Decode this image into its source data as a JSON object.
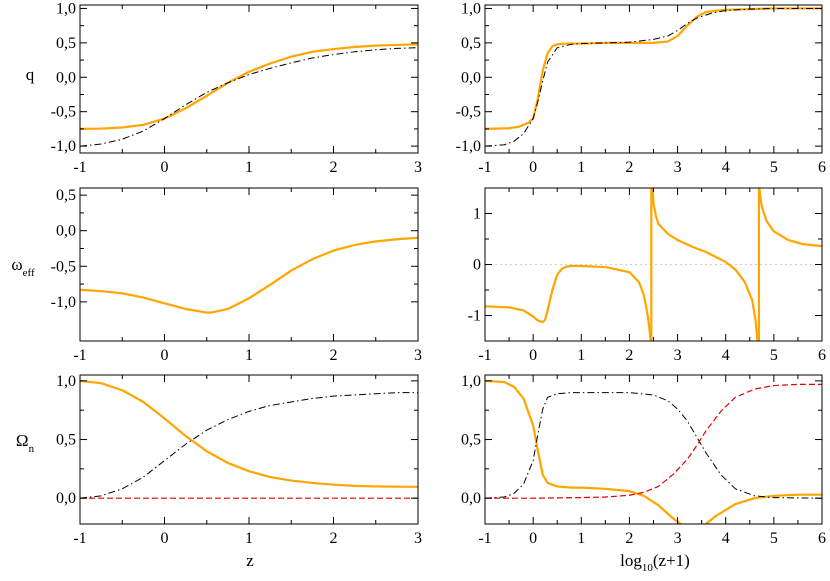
{
  "colors": {
    "orange": "#ffa500",
    "black": "#000000",
    "red": "#e00000",
    "zero_line": "#cccccc"
  },
  "labels": {
    "q": "q",
    "omega": "ω",
    "omega_sub": "eff",
    "Omega": "Ω",
    "Omega_sub": "n",
    "z": "z",
    "log_main": "log",
    "log_sub": "10",
    "log_arg": "(z+1)"
  },
  "chart_data": [
    {
      "id": "q_z",
      "type": "line",
      "row": 0,
      "col": 0,
      "xlim": [
        -1,
        3
      ],
      "ylim": [
        -1.1,
        1.05
      ],
      "xticks": [
        -1,
        0,
        1,
        2,
        3
      ],
      "xticklabels": [
        "-1",
        "0",
        "1",
        "2",
        "3"
      ],
      "yticks": [
        -1,
        -0.5,
        0,
        0.5,
        1
      ],
      "yticklabels": [
        "-1,0",
        "-0,5",
        "0,0",
        "0,5",
        "1,0"
      ],
      "ylabel": "q",
      "series": [
        {
          "color": "orange",
          "style": "solid",
          "width": 2.2,
          "x": [
            -1,
            -0.75,
            -0.5,
            -0.25,
            0,
            0.25,
            0.5,
            0.75,
            1,
            1.25,
            1.5,
            1.75,
            2,
            2.25,
            2.5,
            2.75,
            3
          ],
          "y": [
            -0.75,
            -0.745,
            -0.73,
            -0.69,
            -0.6,
            -0.45,
            -0.27,
            -0.08,
            0.08,
            0.2,
            0.3,
            0.37,
            0.41,
            0.44,
            0.46,
            0.47,
            0.48
          ]
        },
        {
          "color": "black",
          "style": "dashdot",
          "width": 1,
          "x": [
            -1,
            -0.75,
            -0.5,
            -0.25,
            0,
            0.25,
            0.5,
            0.75,
            1,
            1.25,
            1.5,
            1.75,
            2,
            2.25,
            2.5,
            2.75,
            3
          ],
          "y": [
            -1.0,
            -0.97,
            -0.9,
            -0.78,
            -0.6,
            -0.4,
            -0.22,
            -0.08,
            0.04,
            0.13,
            0.21,
            0.28,
            0.33,
            0.37,
            0.4,
            0.42,
            0.43
          ]
        }
      ]
    },
    {
      "id": "q_log",
      "type": "line",
      "row": 0,
      "col": 1,
      "xlim": [
        -1,
        6
      ],
      "ylim": [
        -1.1,
        1.05
      ],
      "xticks": [
        -1,
        0,
        1,
        2,
        3,
        4,
        5,
        6
      ],
      "xticklabels": [
        "-1",
        "0",
        "1",
        "2",
        "3",
        "4",
        "5",
        "6"
      ],
      "yticks": [
        -1,
        -0.5,
        0,
        0.5,
        1
      ],
      "yticklabels": [
        "-1,0",
        "-0,5",
        "0,0",
        "0,5",
        "1,0"
      ],
      "ylabel": "",
      "series": [
        {
          "color": "orange",
          "style": "solid",
          "width": 2.2,
          "x": [
            -1,
            -0.5,
            -0.3,
            -0.1,
            0,
            0.1,
            0.2,
            0.3,
            0.4,
            0.5,
            0.7,
            1,
            1.5,
            2,
            2.5,
            2.8,
            3,
            3.2,
            3.4,
            3.6,
            4,
            4.5,
            5,
            5.5,
            6
          ],
          "y": [
            -0.75,
            -0.74,
            -0.72,
            -0.66,
            -0.6,
            -0.3,
            0.1,
            0.35,
            0.45,
            0.48,
            0.49,
            0.49,
            0.5,
            0.5,
            0.5,
            0.52,
            0.6,
            0.75,
            0.88,
            0.95,
            0.98,
            0.99,
            1.0,
            1.0,
            1.0
          ]
        },
        {
          "color": "black",
          "style": "dashdot",
          "width": 1,
          "x": [
            -1,
            -0.6,
            -0.4,
            -0.2,
            0,
            0.1,
            0.2,
            0.3,
            0.5,
            0.8,
            1,
            1.5,
            2,
            2.5,
            2.8,
            3,
            3.2,
            3.4,
            3.7,
            4,
            4.5,
            5,
            6
          ],
          "y": [
            -1.0,
            -0.98,
            -0.93,
            -0.82,
            -0.6,
            -0.35,
            -0.05,
            0.22,
            0.43,
            0.48,
            0.49,
            0.5,
            0.51,
            0.55,
            0.6,
            0.68,
            0.78,
            0.86,
            0.93,
            0.97,
            0.99,
            1.0,
            1.0
          ]
        }
      ]
    },
    {
      "id": "w_z",
      "type": "line",
      "row": 1,
      "col": 0,
      "xlim": [
        -1,
        3
      ],
      "ylim": [
        -1.55,
        0.6
      ],
      "xticks": [
        -1,
        0,
        1,
        2,
        3
      ],
      "xticklabels": [
        "-1",
        "0",
        "1",
        "2",
        "3"
      ],
      "yticks": [
        -1,
        -0.5,
        0,
        0.5
      ],
      "yticklabels": [
        "-1,0",
        "-0,5",
        "0,0",
        "0,5"
      ],
      "ylabel": "omega",
      "series": [
        {
          "color": "orange",
          "style": "solid",
          "width": 2.2,
          "x": [
            -1,
            -0.75,
            -0.5,
            -0.25,
            0,
            0.25,
            0.5,
            0.55,
            0.75,
            1,
            1.25,
            1.5,
            1.75,
            2,
            2.25,
            2.5,
            2.75,
            3
          ],
          "y": [
            -0.83,
            -0.85,
            -0.88,
            -0.94,
            -1.02,
            -1.1,
            -1.15,
            -1.15,
            -1.1,
            -0.95,
            -0.76,
            -0.56,
            -0.4,
            -0.28,
            -0.2,
            -0.15,
            -0.12,
            -0.1
          ]
        }
      ]
    },
    {
      "id": "w_log",
      "type": "line",
      "row": 1,
      "col": 1,
      "xlim": [
        -1,
        6
      ],
      "ylim": [
        -1.5,
        1.5
      ],
      "xticks": [
        -1,
        0,
        1,
        2,
        3,
        4,
        5,
        6
      ],
      "xticklabels": [
        "-1",
        "0",
        "1",
        "2",
        "3",
        "4",
        "5",
        "6"
      ],
      "yticks": [
        -1,
        0,
        1
      ],
      "yticklabels": [
        "-1",
        "0",
        "1"
      ],
      "ylabel": "",
      "zero_line": true,
      "series": [
        {
          "color": "orange",
          "style": "solid",
          "width": 2.2,
          "x": [
            -1,
            -0.5,
            -0.2,
            0,
            0.1,
            0.2,
            0.25,
            0.3,
            0.4,
            0.5,
            0.6,
            0.7,
            0.8,
            1,
            1.5,
            2,
            2.2,
            2.3,
            2.38,
            2.42,
            2.44
          ],
          "y": [
            -0.82,
            -0.84,
            -0.9,
            -1.02,
            -1.1,
            -1.13,
            -1.08,
            -0.9,
            -0.5,
            -0.2,
            -0.08,
            -0.04,
            -0.03,
            -0.03,
            -0.05,
            -0.15,
            -0.35,
            -0.6,
            -1.0,
            -1.3,
            -1.5
          ]
        },
        {
          "color": "orange",
          "style": "solid",
          "width": 2.2,
          "x": [
            2.48,
            2.5,
            2.55,
            2.6,
            2.8,
            3,
            3.3,
            3.6,
            4,
            4.2,
            4.4,
            4.55,
            4.62,
            4.66
          ],
          "y": [
            1.5,
            1.2,
            0.95,
            0.8,
            0.6,
            0.48,
            0.35,
            0.24,
            0.05,
            -0.1,
            -0.35,
            -0.7,
            -1.1,
            -1.5
          ]
        },
        {
          "color": "orange",
          "style": "solid",
          "width": 2.2,
          "x": [
            4.7,
            4.72,
            4.76,
            4.85,
            5,
            5.3,
            5.6,
            6
          ],
          "y": [
            1.5,
            1.3,
            1.1,
            0.85,
            0.65,
            0.48,
            0.4,
            0.36
          ]
        },
        {
          "color": "orange",
          "style": "solid",
          "width": 2.2,
          "x": [
            2.455,
            2.455
          ],
          "y": [
            -1.5,
            1.5
          ]
        },
        {
          "color": "orange",
          "style": "solid",
          "width": 2.2,
          "x": [
            4.69,
            4.69
          ],
          "y": [
            -1.5,
            1.5
          ]
        }
      ]
    },
    {
      "id": "O_z",
      "type": "line",
      "row": 2,
      "col": 0,
      "xlim": [
        -1,
        3
      ],
      "ylim": [
        -0.22,
        1.05
      ],
      "xticks": [
        -1,
        0,
        1,
        2,
        3
      ],
      "xticklabels": [
        "-1",
        "0",
        "1",
        "2",
        "3"
      ],
      "yticks": [
        0,
        0.5,
        1
      ],
      "yticklabels": [
        "0,0",
        "0,5",
        "1,0"
      ],
      "ylabel": "Omega",
      "xlabel": "z",
      "series": [
        {
          "color": "orange",
          "style": "solid",
          "width": 2.2,
          "x": [
            -1,
            -0.75,
            -0.5,
            -0.25,
            0,
            0.25,
            0.5,
            0.75,
            1,
            1.25,
            1.5,
            1.75,
            2,
            2.25,
            2.5,
            2.75,
            3
          ],
          "y": [
            1.0,
            0.98,
            0.92,
            0.82,
            0.68,
            0.53,
            0.4,
            0.3,
            0.23,
            0.18,
            0.15,
            0.13,
            0.115,
            0.105,
            0.1,
            0.098,
            0.097
          ]
        },
        {
          "color": "black",
          "style": "dashdot",
          "width": 1,
          "x": [
            -1,
            -0.75,
            -0.5,
            -0.25,
            0,
            0.25,
            0.5,
            0.75,
            1,
            1.25,
            1.5,
            1.75,
            2,
            2.25,
            2.5,
            2.75,
            3
          ],
          "y": [
            0.0,
            0.02,
            0.08,
            0.18,
            0.32,
            0.46,
            0.58,
            0.67,
            0.74,
            0.79,
            0.82,
            0.85,
            0.87,
            0.88,
            0.89,
            0.9,
            0.9
          ]
        },
        {
          "color": "red",
          "style": "dashed",
          "width": 1.2,
          "x": [
            -1,
            3
          ],
          "y": [
            0.0,
            0.0
          ]
        }
      ]
    },
    {
      "id": "O_log",
      "type": "line",
      "row": 2,
      "col": 1,
      "xlim": [
        -1,
        6
      ],
      "ylim": [
        -0.22,
        1.05
      ],
      "xticks": [
        -1,
        0,
        1,
        2,
        3,
        4,
        5,
        6
      ],
      "xticklabels": [
        "-1",
        "0",
        "1",
        "2",
        "3",
        "4",
        "5",
        "6"
      ],
      "yticks": [
        0,
        0.5,
        1
      ],
      "yticklabels": [
        "0,0",
        "0,5",
        "1,0"
      ],
      "ylabel": "",
      "xlabel": "log10(z+1)",
      "series": [
        {
          "color": "orange",
          "style": "solid",
          "width": 2.2,
          "x": [
            -1,
            -0.6,
            -0.4,
            -0.2,
            0,
            0.1,
            0.2,
            0.3,
            0.5,
            0.8,
            1,
            1.5,
            2,
            2.3,
            2.6,
            2.9,
            3.2,
            3.35,
            3.5,
            3.8,
            4.2,
            4.6,
            5,
            5.5,
            6
          ],
          "y": [
            1.0,
            0.99,
            0.95,
            0.85,
            0.62,
            0.4,
            0.2,
            0.13,
            0.1,
            0.09,
            0.09,
            0.08,
            0.06,
            0.02,
            -0.06,
            -0.17,
            -0.26,
            -0.28,
            -0.25,
            -0.15,
            -0.05,
            0.0,
            0.02,
            0.03,
            0.03
          ]
        },
        {
          "color": "black",
          "style": "dashdot",
          "width": 1,
          "x": [
            -1,
            -0.6,
            -0.4,
            -0.2,
            0,
            0.1,
            0.2,
            0.3,
            0.5,
            0.8,
            1,
            1.5,
            2,
            2.5,
            2.8,
            3,
            3.2,
            3.4,
            3.6,
            3.9,
            4.2,
            4.6,
            5,
            6
          ],
          "y": [
            0.0,
            0.01,
            0.04,
            0.12,
            0.32,
            0.55,
            0.76,
            0.86,
            0.89,
            0.9,
            0.9,
            0.9,
            0.9,
            0.88,
            0.83,
            0.76,
            0.66,
            0.52,
            0.38,
            0.2,
            0.08,
            0.02,
            0.005,
            0.0
          ]
        },
        {
          "color": "red",
          "style": "dashed",
          "width": 1.2,
          "x": [
            -1,
            0,
            1,
            1.5,
            2,
            2.3,
            2.6,
            2.9,
            3.2,
            3.4,
            3.6,
            3.9,
            4.2,
            4.6,
            5,
            5.5,
            6
          ],
          "y": [
            0.0,
            0.0,
            0.005,
            0.01,
            0.025,
            0.05,
            0.1,
            0.2,
            0.33,
            0.45,
            0.58,
            0.74,
            0.86,
            0.93,
            0.96,
            0.97,
            0.97
          ]
        }
      ]
    }
  ]
}
